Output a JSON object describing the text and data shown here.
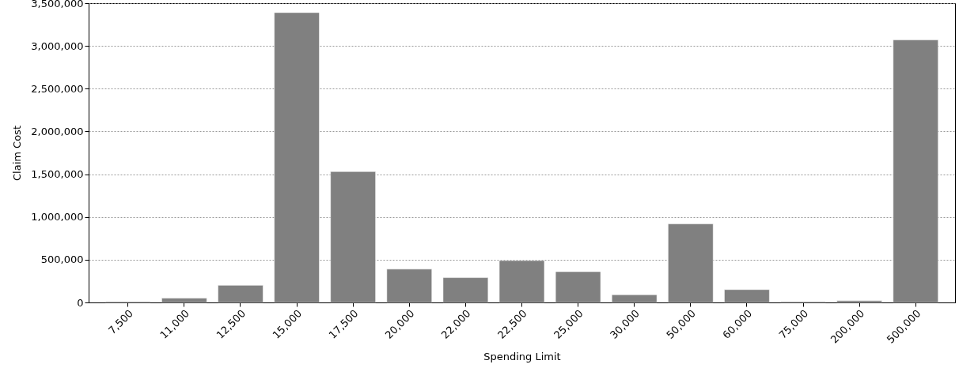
{
  "chart_data": {
    "type": "bar",
    "xlabel": "Spending Limit",
    "ylabel": "Claim Cost",
    "categories": [
      "7,500",
      "11,000",
      "12,500",
      "15,000",
      "17,500",
      "20,000",
      "22,000",
      "22,500",
      "25,000",
      "30,000",
      "50,000",
      "60,000",
      "75,000",
      "200,000",
      "500,000"
    ],
    "values": [
      10000,
      50000,
      200000,
      3390000,
      1530000,
      390000,
      290000,
      490000,
      360000,
      90000,
      920000,
      150000,
      10000,
      20000,
      3070000
    ],
    "color": "#808080",
    "ylim": [
      0,
      3500000
    ],
    "yticks": [
      0,
      {
        "value": 500000,
        "label": "500,000"
      },
      {
        "value": 1000000,
        "label": "1,000,000"
      },
      {
        "value": 1500000,
        "label": "1,500,000"
      },
      {
        "value": 2000000,
        "label": "2,000,000"
      },
      {
        "value": 2500000,
        "label": "2,500,000"
      },
      {
        "value": 3000000,
        "label": "3,000,000"
      },
      {
        "value": 3500000,
        "label": "3,500,000"
      }
    ],
    "grid": "y"
  }
}
